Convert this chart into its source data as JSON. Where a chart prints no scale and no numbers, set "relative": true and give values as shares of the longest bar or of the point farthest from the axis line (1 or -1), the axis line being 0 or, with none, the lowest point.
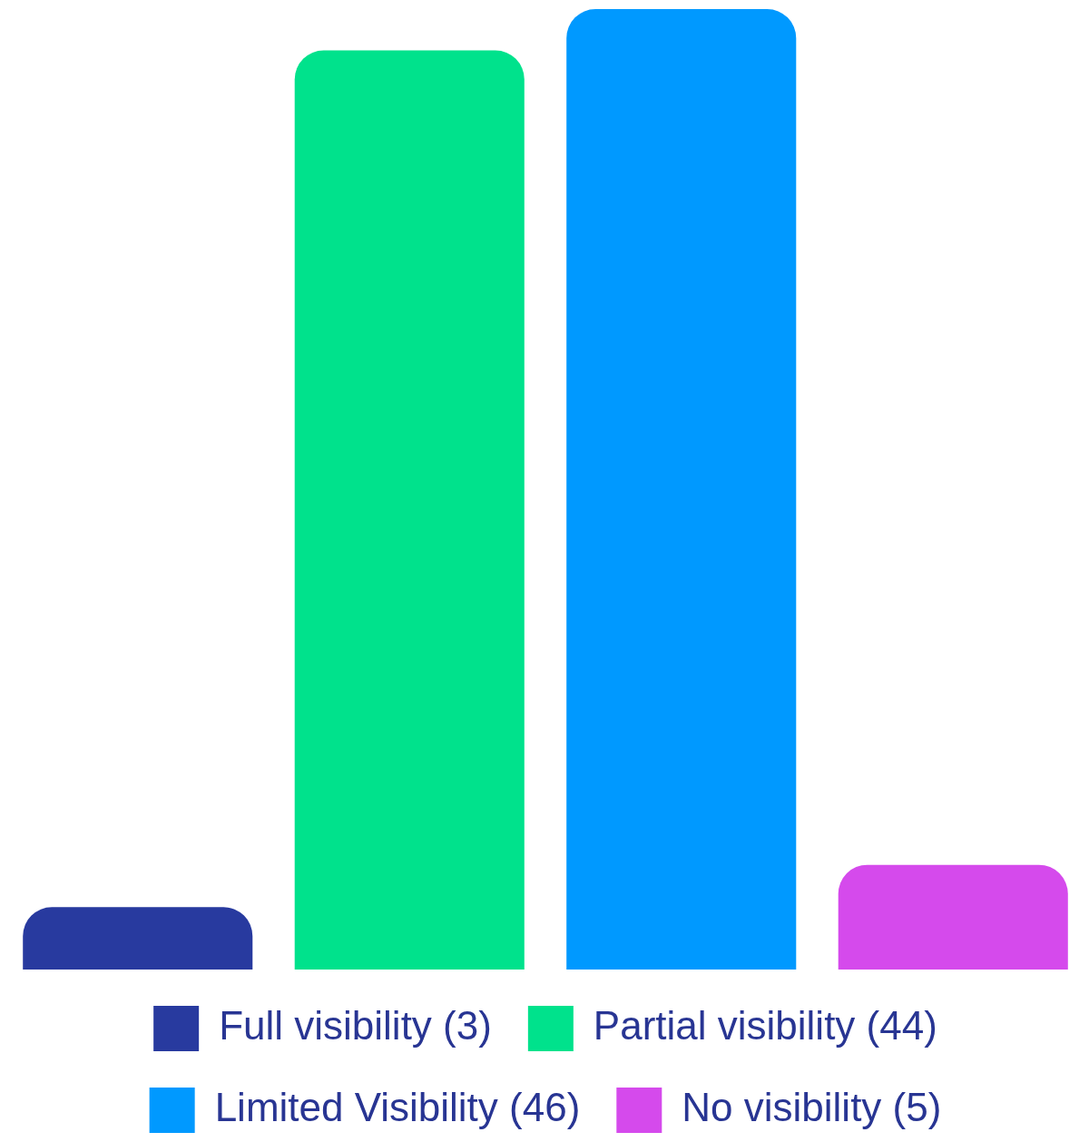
{
  "chart_data": {
    "type": "bar",
    "categories": [
      null,
      null,
      null,
      null
    ],
    "series": [
      {
        "name": "Full visibility (3)",
        "color": "#283a9f",
        "values": [
          0.065,
          null,
          null,
          null
        ]
      },
      {
        "name": "Partial visibility (44)",
        "color": "#00e28c",
        "values": [
          null,
          0.957,
          null,
          null
        ]
      },
      {
        "name": "Limited Visibility (46)",
        "color": "#0099ff",
        "values": [
          null,
          null,
          1,
          null
        ]
      },
      {
        "name": "No visibility (5)",
        "color": "#d54aec",
        "values": [
          null,
          null,
          null,
          0.109
        ]
      }
    ],
    "relative": true,
    "stacked": true,
    "legend": "bottom",
    "grid": false,
    "tick_labels": false
  }
}
